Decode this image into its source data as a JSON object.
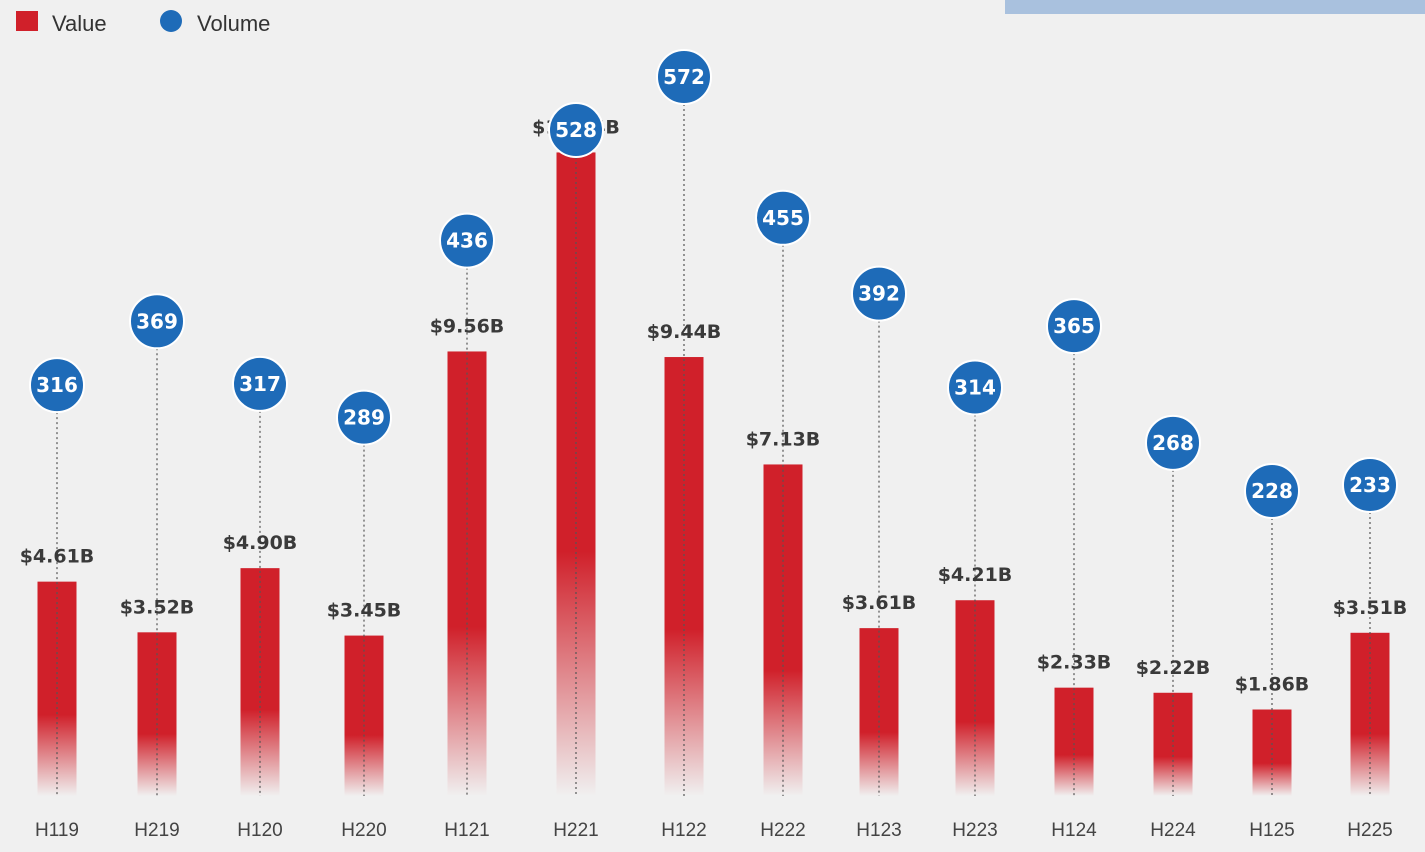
{
  "chart_data": {
    "type": "bar",
    "categories": [
      "H119",
      "H219",
      "H120",
      "H220",
      "H121",
      "H221",
      "H122",
      "H222",
      "H123",
      "H223",
      "H124",
      "H224",
      "H125",
      "H225"
    ],
    "series": [
      {
        "name": "Value",
        "values": [
          4.61,
          3.52,
          4.9,
          3.45,
          9.56,
          13.84,
          9.44,
          7.13,
          3.61,
          4.21,
          2.33,
          2.22,
          1.86,
          3.51
        ],
        "labels": [
          "$4.61B",
          "$3.52B",
          "$4.90B",
          "$3.45B",
          "$9.56B",
          "$13.84B",
          "$9.44B",
          "$7.13B",
          "$3.61B",
          "$4.21B",
          "$2.33B",
          "$2.22B",
          "$1.86B",
          "$3.51B"
        ]
      },
      {
        "name": "Volume",
        "values": [
          316,
          369,
          317,
          289,
          436,
          528,
          572,
          455,
          392,
          314,
          365,
          268,
          228,
          233
        ],
        "labels": [
          "316",
          "369",
          "317",
          "289",
          "436",
          "528",
          "572",
          "455",
          "392",
          "314",
          "365",
          "268",
          "228",
          "233"
        ]
      }
    ],
    "legend": {
      "position": "top-left",
      "items": [
        "Value",
        "Volume"
      ]
    },
    "grid": false,
    "colors": {
      "value": "#d0202a",
      "volume": "#1e6bb8",
      "background": "#f0f0f0",
      "top_bar": "#a9c1de"
    }
  }
}
